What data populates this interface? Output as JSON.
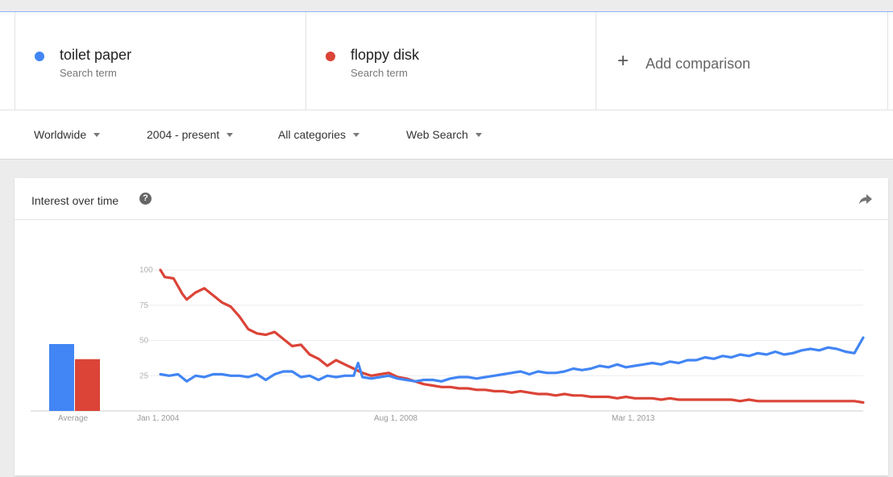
{
  "comparison": {
    "terms": [
      {
        "name": "toilet paper",
        "subtitle": "Search term",
        "color": "#4285f4",
        "dot_icon": "blue-dot-icon"
      },
      {
        "name": "floppy disk",
        "subtitle": "Search term",
        "color": "#db4437",
        "dot_icon": "red-dot-icon"
      }
    ],
    "add": {
      "icon": "+",
      "label": "Add comparison"
    }
  },
  "filters": {
    "region": "Worldwide",
    "time": "2004 - present",
    "category": "All categories",
    "property": "Web Search"
  },
  "card": {
    "title": "Interest over time",
    "help_icon": "?",
    "share_icon": "share-arrow-icon"
  },
  "chart_data": {
    "type": "line",
    "y_ticks": [
      "100",
      "75",
      "50",
      "25"
    ],
    "ylim": [
      0,
      100
    ],
    "x_tick_labels": [
      "Jan 1, 2004",
      "Aug 1, 2008",
      "Mar 1, 2013"
    ],
    "x_range": [
      "2004-01",
      "2017-02"
    ],
    "grid": true,
    "average_label": "Average",
    "series": [
      {
        "name": "toilet paper",
        "color": "#4285f4",
        "average": 31,
        "values": [
          [
            2004.0,
            26
          ],
          [
            2004.2,
            25
          ],
          [
            2004.4,
            26
          ],
          [
            2004.6,
            21
          ],
          [
            2004.8,
            25
          ],
          [
            2005.0,
            24
          ],
          [
            2005.2,
            26
          ],
          [
            2005.4,
            26
          ],
          [
            2005.6,
            25
          ],
          [
            2005.8,
            25
          ],
          [
            2006.0,
            24
          ],
          [
            2006.2,
            26
          ],
          [
            2006.4,
            22
          ],
          [
            2006.6,
            26
          ],
          [
            2006.8,
            28
          ],
          [
            2007.0,
            28
          ],
          [
            2007.2,
            24
          ],
          [
            2007.4,
            25
          ],
          [
            2007.6,
            22
          ],
          [
            2007.8,
            25
          ],
          [
            2008.0,
            24
          ],
          [
            2008.2,
            25
          ],
          [
            2008.4,
            25
          ],
          [
            2008.5,
            34
          ],
          [
            2008.6,
            24
          ],
          [
            2008.8,
            23
          ],
          [
            2009.0,
            24
          ],
          [
            2009.2,
            25
          ],
          [
            2009.4,
            23
          ],
          [
            2009.6,
            22
          ],
          [
            2009.8,
            21
          ],
          [
            2010.0,
            22
          ],
          [
            2010.2,
            22
          ],
          [
            2010.4,
            21
          ],
          [
            2010.6,
            23
          ],
          [
            2010.8,
            24
          ],
          [
            2011.0,
            24
          ],
          [
            2011.2,
            23
          ],
          [
            2011.4,
            24
          ],
          [
            2011.6,
            25
          ],
          [
            2011.8,
            26
          ],
          [
            2012.0,
            27
          ],
          [
            2012.2,
            28
          ],
          [
            2012.4,
            26
          ],
          [
            2012.6,
            28
          ],
          [
            2012.8,
            27
          ],
          [
            2013.0,
            27
          ],
          [
            2013.2,
            28
          ],
          [
            2013.4,
            30
          ],
          [
            2013.6,
            29
          ],
          [
            2013.8,
            30
          ],
          [
            2014.0,
            32
          ],
          [
            2014.2,
            31
          ],
          [
            2014.4,
            33
          ],
          [
            2014.6,
            31
          ],
          [
            2014.8,
            32
          ],
          [
            2015.0,
            33
          ],
          [
            2015.2,
            34
          ],
          [
            2015.4,
            33
          ],
          [
            2015.6,
            35
          ],
          [
            2015.8,
            34
          ],
          [
            2016.0,
            36
          ],
          [
            2016.2,
            36
          ],
          [
            2016.4,
            38
          ],
          [
            2016.6,
            37
          ],
          [
            2016.8,
            39
          ],
          [
            2017.0,
            38
          ],
          [
            2017.2,
            40
          ],
          [
            2017.4,
            39
          ],
          [
            2017.6,
            41
          ],
          [
            2017.8,
            40
          ],
          [
            2018.0,
            42
          ],
          [
            2018.2,
            40
          ],
          [
            2018.4,
            41
          ],
          [
            2018.6,
            43
          ],
          [
            2018.8,
            44
          ],
          [
            2019.0,
            43
          ],
          [
            2019.2,
            45
          ],
          [
            2019.4,
            44
          ],
          [
            2019.6,
            42
          ],
          [
            2019.8,
            41
          ],
          [
            2020.0,
            52
          ]
        ]
      },
      {
        "name": "floppy disk",
        "color": "#db4437",
        "average": 24,
        "values": [
          [
            2004.0,
            100
          ],
          [
            2004.1,
            95
          ],
          [
            2004.3,
            94
          ],
          [
            2004.5,
            83
          ],
          [
            2004.6,
            79
          ],
          [
            2004.8,
            84
          ],
          [
            2005.0,
            87
          ],
          [
            2005.2,
            82
          ],
          [
            2005.4,
            77
          ],
          [
            2005.6,
            74
          ],
          [
            2005.8,
            67
          ],
          [
            2006.0,
            58
          ],
          [
            2006.2,
            55
          ],
          [
            2006.4,
            54
          ],
          [
            2006.6,
            56
          ],
          [
            2006.8,
            51
          ],
          [
            2007.0,
            46
          ],
          [
            2007.2,
            47
          ],
          [
            2007.4,
            40
          ],
          [
            2007.6,
            37
          ],
          [
            2007.8,
            32
          ],
          [
            2008.0,
            36
          ],
          [
            2008.2,
            33
          ],
          [
            2008.4,
            30
          ],
          [
            2008.6,
            27
          ],
          [
            2008.8,
            25
          ],
          [
            2009.0,
            26
          ],
          [
            2009.2,
            27
          ],
          [
            2009.4,
            24
          ],
          [
            2009.6,
            23
          ],
          [
            2009.8,
            21
          ],
          [
            2010.0,
            19
          ],
          [
            2010.2,
            18
          ],
          [
            2010.4,
            17
          ],
          [
            2010.6,
            17
          ],
          [
            2010.8,
            16
          ],
          [
            2011.0,
            16
          ],
          [
            2011.2,
            15
          ],
          [
            2011.4,
            15
          ],
          [
            2011.6,
            14
          ],
          [
            2011.8,
            14
          ],
          [
            2012.0,
            13
          ],
          [
            2012.2,
            14
          ],
          [
            2012.4,
            13
          ],
          [
            2012.6,
            12
          ],
          [
            2012.8,
            12
          ],
          [
            2013.0,
            11
          ],
          [
            2013.2,
            12
          ],
          [
            2013.4,
            11
          ],
          [
            2013.6,
            11
          ],
          [
            2013.8,
            10
          ],
          [
            2014.0,
            10
          ],
          [
            2014.2,
            10
          ],
          [
            2014.4,
            9
          ],
          [
            2014.6,
            10
          ],
          [
            2014.8,
            9
          ],
          [
            2015.0,
            9
          ],
          [
            2015.2,
            9
          ],
          [
            2015.4,
            8
          ],
          [
            2015.6,
            9
          ],
          [
            2015.8,
            8
          ],
          [
            2016.0,
            8
          ],
          [
            2016.2,
            8
          ],
          [
            2016.4,
            8
          ],
          [
            2016.6,
            8
          ],
          [
            2016.8,
            8
          ],
          [
            2017.0,
            8
          ],
          [
            2017.2,
            7
          ],
          [
            2017.4,
            8
          ],
          [
            2017.6,
            7
          ],
          [
            2017.8,
            7
          ],
          [
            2018.0,
            7
          ],
          [
            2018.2,
            7
          ],
          [
            2018.4,
            7
          ],
          [
            2018.6,
            7
          ],
          [
            2018.8,
            7
          ],
          [
            2019.0,
            7
          ],
          [
            2019.2,
            7
          ],
          [
            2019.4,
            7
          ],
          [
            2019.6,
            7
          ],
          [
            2019.8,
            7
          ],
          [
            2020.0,
            6
          ]
        ]
      }
    ]
  }
}
